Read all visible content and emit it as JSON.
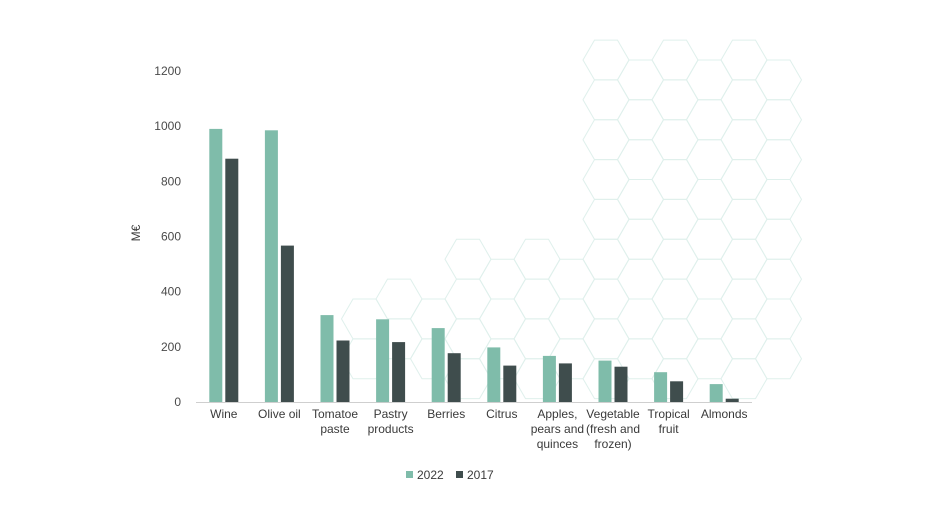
{
  "chart_data": {
    "type": "bar",
    "title": "",
    "xlabel": "",
    "ylabel": "M€",
    "ylim": [
      0,
      1200
    ],
    "yticks": [
      0,
      200,
      400,
      600,
      800,
      1000,
      1200
    ],
    "grid": false,
    "legend_position": "bottom-center",
    "categories": [
      [
        "Wine"
      ],
      [
        "Olive oil"
      ],
      [
        "Tomatoe",
        "paste"
      ],
      [
        "Pastry",
        "products"
      ],
      [
        "Berries"
      ],
      [
        "Citrus"
      ],
      [
        "Apples,",
        "pears and",
        "quinces"
      ],
      [
        "Vegetable",
        "(fresh and",
        "frozen)"
      ],
      [
        "Tropical",
        "fruit"
      ],
      [
        "Almonds"
      ]
    ],
    "series": [
      {
        "name": "2022",
        "color": "#7fbcaa",
        "values": [
          990,
          985,
          315,
          300,
          268,
          198,
          167,
          150,
          108,
          65
        ]
      },
      {
        "name": "2017",
        "color": "#3f4d4d",
        "values": [
          882,
          567,
          223,
          217,
          177,
          132,
          140,
          128,
          75,
          12
        ]
      }
    ],
    "colors": {
      "axis": "#cfcfcf",
      "background_pattern": "#dff0ec"
    }
  }
}
